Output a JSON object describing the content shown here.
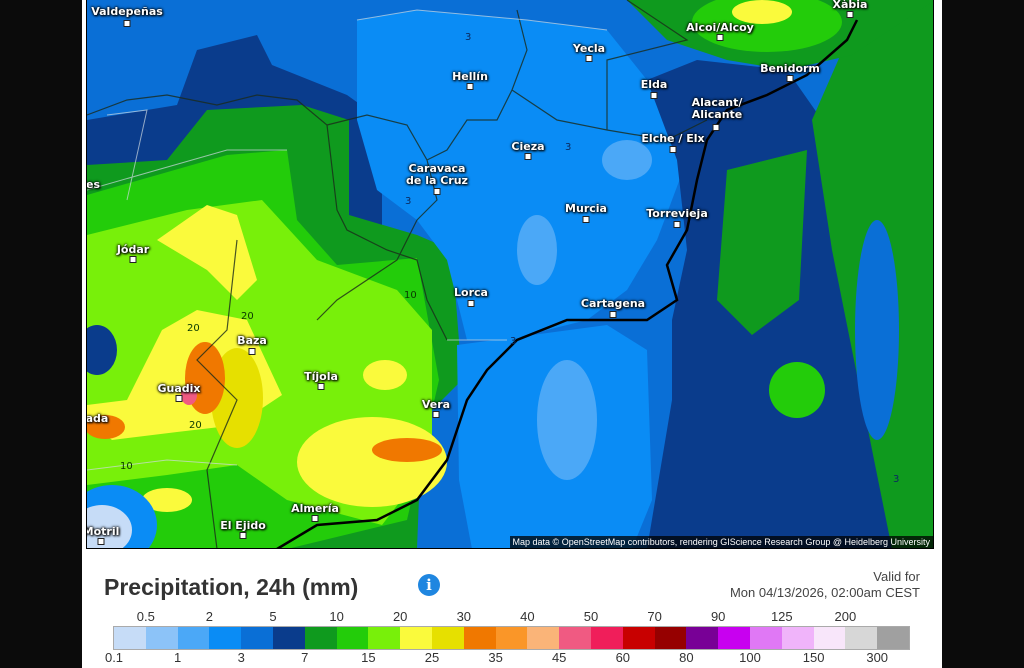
{
  "map": {
    "attribution": "Map data © OpenStreetMap contributors, rendering GIScience Research Group @ Heidelberg University",
    "cities": [
      {
        "name": "Valdepeñas"
      },
      {
        "name": "Hellín"
      },
      {
        "name": "Yecla"
      },
      {
        "name": "Alcoi/Alcoy"
      },
      {
        "name": "Xàbia"
      },
      {
        "name": "Benidorm"
      },
      {
        "name": "Elda"
      },
      {
        "name": "Alacant/\nAlicante"
      },
      {
        "name": "Elche / Elx"
      },
      {
        "name": "Cieza"
      },
      {
        "name": "Caravaca\nde la Cruz"
      },
      {
        "name": "Murcia"
      },
      {
        "name": "Torrevieja"
      },
      {
        "name": "Jódar"
      },
      {
        "name": "Lorca"
      },
      {
        "name": "Cartagena"
      },
      {
        "name": "Baza"
      },
      {
        "name": "Guadix"
      },
      {
        "name": "Tíjola"
      },
      {
        "name": "Vera"
      },
      {
        "name": "Almería"
      },
      {
        "name": "El Ejido"
      },
      {
        "name": "Motril"
      }
    ],
    "partial_labels": [
      "es",
      "ada"
    ],
    "contour_labels": [
      "3",
      "3",
      "3",
      "3",
      "3",
      "20",
      "20",
      "20",
      "10",
      "10",
      "3"
    ]
  },
  "legend": {
    "title": "Precipitation, 24h (mm)",
    "info_icon": "info-circle-icon",
    "valid_label": "Valid for",
    "valid_time": "Mon 04/13/2026, 02:00am CEST",
    "colors": [
      "#c6dcf7",
      "#8cc3f8",
      "#4ba8f7",
      "#0a8cf5",
      "#0a6fd6",
      "#0a3c8c",
      "#0f9a1e",
      "#23cc0a",
      "#78f00a",
      "#fafa3c",
      "#e6e000",
      "#f07800",
      "#fa9628",
      "#fab478",
      "#f05a82",
      "#f01e5a",
      "#c80000",
      "#960000",
      "#780096",
      "#c800f0",
      "#e078f5",
      "#f0b4fa",
      "#f8e6fa",
      "#d7d7d7",
      "#a0a0a0"
    ],
    "top_ticks": [
      "0.5",
      "2",
      "5",
      "10",
      "20",
      "30",
      "40",
      "50",
      "70",
      "90",
      "125",
      "200"
    ],
    "bottom_ticks": [
      "0.1",
      "1",
      "3",
      "7",
      "15",
      "25",
      "35",
      "45",
      "60",
      "80",
      "100",
      "150",
      "300"
    ]
  }
}
